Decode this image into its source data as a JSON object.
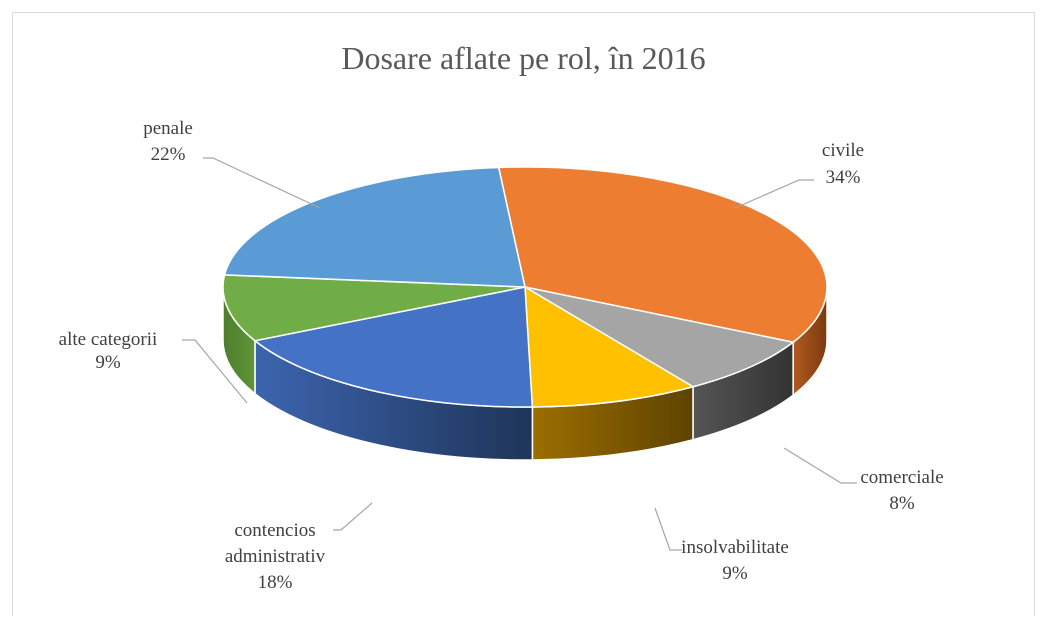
{
  "chart_data": {
    "type": "pie",
    "title": "Dosare aflate pe rol, în 2016",
    "slices": [
      {
        "category": "civile",
        "value": 34,
        "label": "34%",
        "color": "#ED7D31"
      },
      {
        "category": "comerciale",
        "value": 8,
        "label": "8%",
        "color": "#A5A5A5"
      },
      {
        "category": "insolvabilitate",
        "value": 9,
        "label": "9%",
        "color": "#FFC000"
      },
      {
        "category": "contencios administrativ",
        "value": 18,
        "label": "18%",
        "color": "#4472C4"
      },
      {
        "category": "alte categorii",
        "value": 9,
        "label": "9%",
        "color": "#70AD47"
      },
      {
        "category": "penale",
        "value": 22,
        "label": "22%",
        "color": "#5B9BD5"
      }
    ],
    "legend": "none",
    "style": "3d-pie"
  }
}
